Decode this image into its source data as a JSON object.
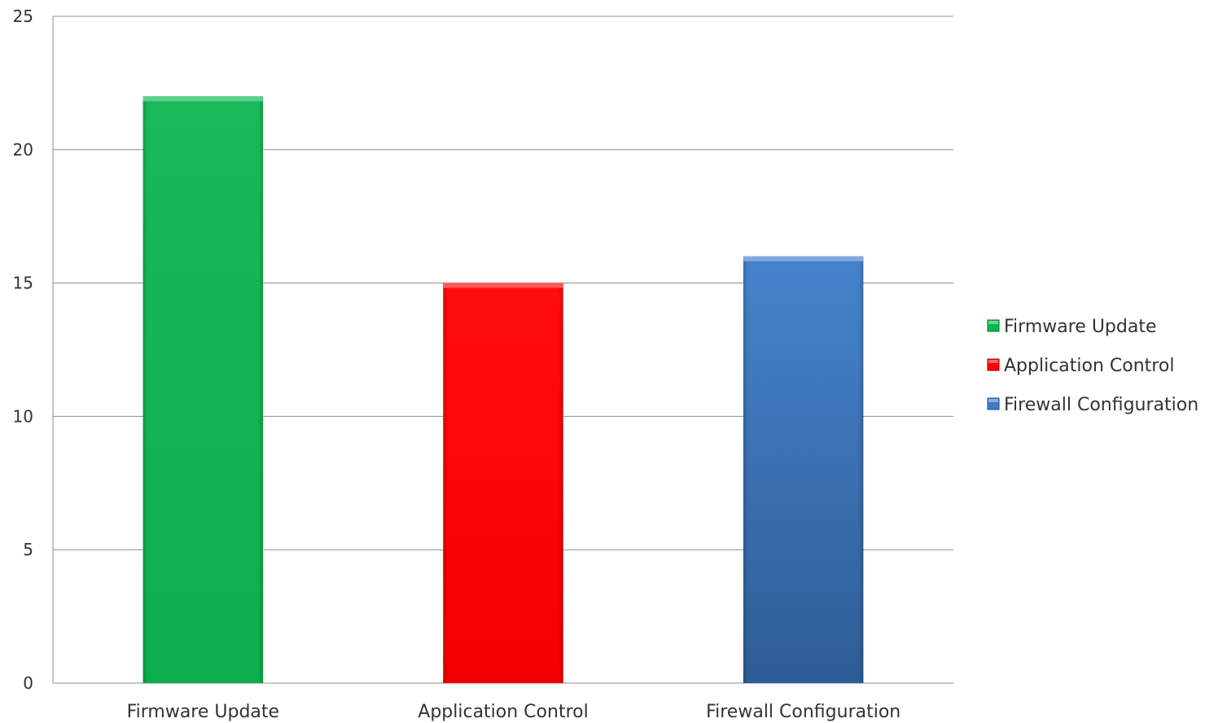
{
  "chart_data": {
    "type": "bar",
    "title": "",
    "xlabel": "",
    "ylabel": "",
    "categories": [
      "Firmware Update",
      "Application Control",
      "Firewall Configuration"
    ],
    "values": [
      22,
      15,
      16
    ],
    "colors": [
      "#0bb650",
      "#ff0000",
      "#3c7cc8"
    ],
    "ylim": [
      0,
      25
    ],
    "yticks": [
      0,
      5,
      10,
      15,
      20,
      25
    ],
    "grid": true,
    "legend": {
      "position": "right",
      "entries": [
        "Firmware Update",
        "Application Control",
        "Firewall Configuration"
      ]
    }
  }
}
